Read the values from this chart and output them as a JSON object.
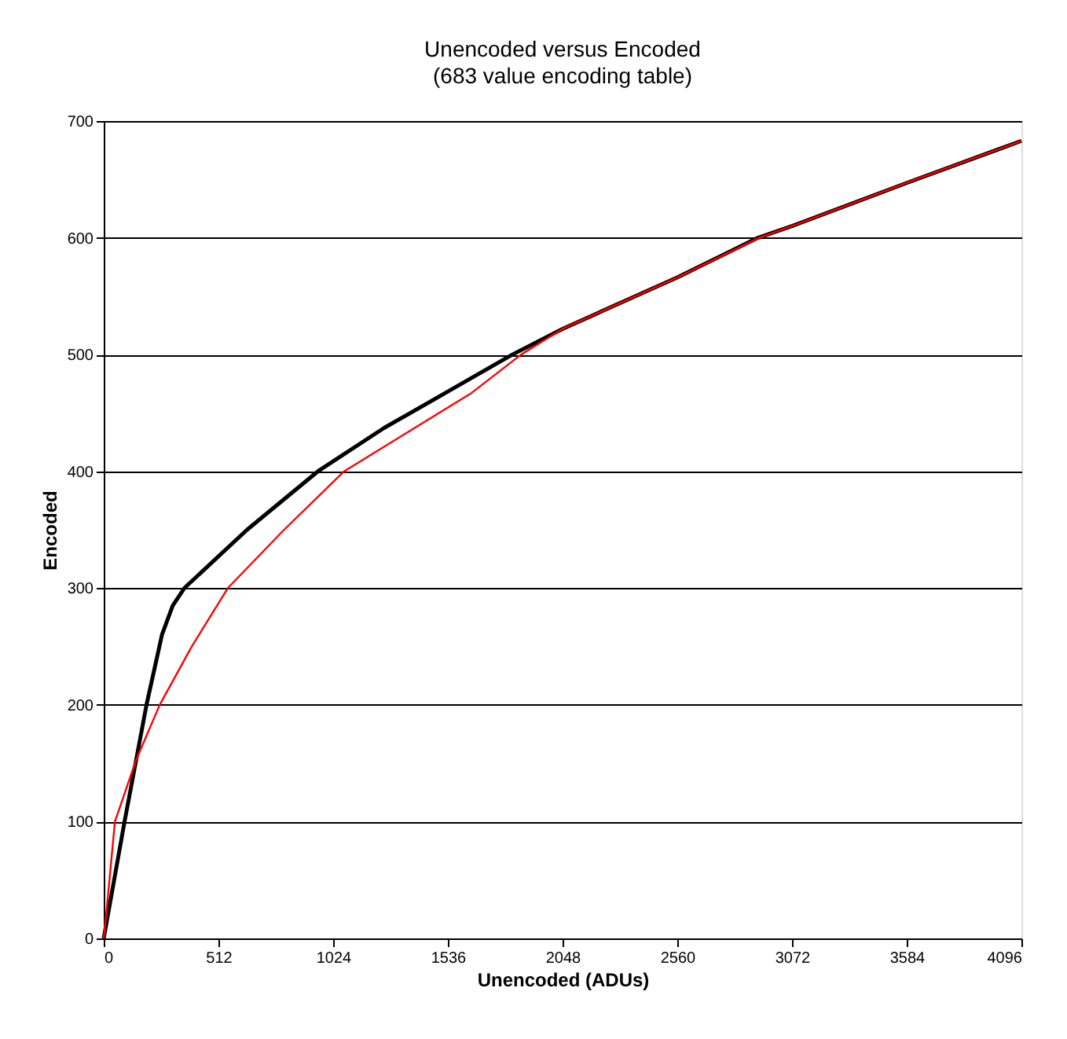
{
  "chart_data": {
    "type": "line",
    "title": "Unencoded versus Encoded",
    "subtitle": "(683 value encoding table)",
    "xlabel": "Unencoded (ADUs)",
    "ylabel": "Encoded",
    "xlim": [
      0,
      4096
    ],
    "xticks": [
      0,
      512,
      1024,
      1536,
      2048,
      2560,
      3072,
      3584,
      4096
    ],
    "ylim": [
      0,
      700
    ],
    "yticks": [
      0,
      100,
      200,
      300,
      400,
      500,
      600,
      700
    ],
    "grid": "y",
    "marker": "none",
    "line_style": "solid",
    "series": [
      {
        "color": "#000000",
        "x": [
          0,
          93,
          191,
          260,
          308,
          360,
          640,
          956,
          1250,
          1524,
          1824,
          2048,
          2560,
          2920,
          3072,
          3584,
          4096
        ],
        "values": [
          0,
          100,
          200,
          260,
          285,
          300,
          350,
          400,
          437,
          467,
          500,
          522,
          566,
          600,
          610,
          647,
          683
        ]
      },
      {
        "color": "#ff0000",
        "x": [
          0,
          16,
          50,
          145,
          250,
          390,
          554,
          800,
          1073,
          1641,
          1863,
          2048,
          2560,
          2925,
          3072,
          3584,
          4096
        ],
        "values": [
          0,
          30,
          100,
          153,
          200,
          249,
          300,
          349,
          400,
          467,
          500,
          522,
          566,
          600,
          610,
          647,
          683
        ]
      }
    ]
  }
}
